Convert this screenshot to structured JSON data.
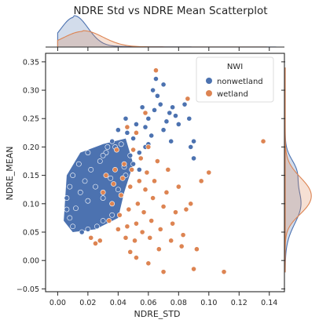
{
  "chart_data": {
    "type": "scatter",
    "title": "NDRE Std vs NDRE Mean Scatterplot",
    "xlabel": "NDRE_STD",
    "ylabel": "NDRE_MEAN",
    "xlim": [
      -0.008,
      0.15
    ],
    "ylim": [
      -0.055,
      0.365
    ],
    "xticks": [
      "0.00",
      "0.02",
      "0.04",
      "0.06",
      "0.08",
      "0.10",
      "0.12",
      "0.14"
    ],
    "yticks": [
      "−0.05",
      "0.00",
      "0.05",
      "0.10",
      "0.15",
      "0.20",
      "0.25",
      "0.30",
      "0.35"
    ],
    "legend": {
      "title": "NWI",
      "placement": "top-right"
    },
    "grid": false,
    "marginals": {
      "top": "kde of NDRE_STD by NWI",
      "right": "kde of NDRE_MEAN by NWI"
    },
    "series": [
      {
        "name": "nonwetland",
        "color": "#4c72b0",
        "points": [
          [
            0.012,
            0.092
          ],
          [
            0.015,
            0.12
          ],
          [
            0.018,
            0.14
          ],
          [
            0.02,
            0.105
          ],
          [
            0.022,
            0.16
          ],
          [
            0.025,
            0.13
          ],
          [
            0.028,
            0.175
          ],
          [
            0.03,
            0.11
          ],
          [
            0.032,
            0.19
          ],
          [
            0.035,
            0.145
          ],
          [
            0.038,
            0.2
          ],
          [
            0.04,
            0.125
          ],
          [
            0.042,
            0.205
          ],
          [
            0.044,
            0.165
          ],
          [
            0.046,
            0.225
          ],
          [
            0.048,
            0.185
          ],
          [
            0.05,
            0.215
          ],
          [
            0.052,
            0.24
          ],
          [
            0.054,
            0.16
          ],
          [
            0.056,
            0.27
          ],
          [
            0.058,
            0.2
          ],
          [
            0.06,
            0.25
          ],
          [
            0.062,
            0.22
          ],
          [
            0.063,
            0.3
          ],
          [
            0.064,
            0.265
          ],
          [
            0.066,
            0.29
          ],
          [
            0.068,
            0.275
          ],
          [
            0.07,
            0.31
          ],
          [
            0.072,
            0.245
          ],
          [
            0.074,
            0.26
          ],
          [
            0.076,
            0.27
          ],
          [
            0.078,
            0.255
          ],
          [
            0.08,
            0.24
          ],
          [
            0.084,
            0.275
          ],
          [
            0.087,
            0.25
          ],
          [
            0.09,
            0.21
          ],
          [
            0.065,
            0.32
          ],
          [
            0.045,
            0.25
          ],
          [
            0.04,
            0.23
          ],
          [
            0.036,
            0.21
          ],
          [
            0.033,
            0.2
          ],
          [
            0.03,
            0.185
          ],
          [
            0.026,
            0.06
          ],
          [
            0.03,
            0.07
          ],
          [
            0.036,
            0.08
          ],
          [
            0.02,
            0.055
          ],
          [
            0.016,
            0.05
          ],
          [
            0.01,
            0.06
          ],
          [
            0.008,
            0.075
          ],
          [
            0.006,
            0.09
          ],
          [
            0.006,
            0.11
          ],
          [
            0.008,
            0.13
          ],
          [
            0.01,
            0.15
          ],
          [
            0.014,
            0.17
          ],
          [
            0.02,
            0.19
          ],
          [
            0.045,
            0.15
          ],
          [
            0.05,
            0.17
          ],
          [
            0.054,
            0.19
          ],
          [
            0.06,
            0.205
          ],
          [
            0.058,
            0.235
          ],
          [
            0.07,
            0.23
          ],
          [
            0.075,
            0.21
          ],
          [
            0.088,
            0.2
          ],
          [
            0.09,
            0.18
          ]
        ]
      },
      {
        "name": "wetland",
        "color": "#dd8452",
        "points": [
          [
            0.136,
            0.21
          ],
          [
            0.11,
            -0.02
          ],
          [
            0.1,
            0.155
          ],
          [
            0.095,
            0.14
          ],
          [
            0.092,
            0.02
          ],
          [
            0.09,
            -0.015
          ],
          [
            0.088,
            0.1
          ],
          [
            0.086,
            0.285
          ],
          [
            0.085,
            0.09
          ],
          [
            0.083,
            0.045
          ],
          [
            0.08,
            0.13
          ],
          [
            0.078,
            0.085
          ],
          [
            0.076,
            0.065
          ],
          [
            0.075,
            0.035
          ],
          [
            0.073,
            0.16
          ],
          [
            0.072,
            0.12
          ],
          [
            0.07,
            0.095
          ],
          [
            0.068,
            0.055
          ],
          [
            0.067,
            0.02
          ],
          [
            0.066,
            0.175
          ],
          [
            0.065,
            0.335
          ],
          [
            0.064,
            0.14
          ],
          [
            0.063,
            0.11
          ],
          [
            0.062,
            0.07
          ],
          [
            0.061,
            0.04
          ],
          [
            0.06,
            0.2
          ],
          [
            0.059,
            0.155
          ],
          [
            0.058,
            0.125
          ],
          [
            0.057,
            0.085
          ],
          [
            0.056,
            0.05
          ],
          [
            0.055,
            0.18
          ],
          [
            0.054,
            0.14
          ],
          [
            0.053,
            0.1
          ],
          [
            0.052,
            0.065
          ],
          [
            0.051,
            0.035
          ],
          [
            0.05,
            0.195
          ],
          [
            0.049,
            0.16
          ],
          [
            0.048,
            0.13
          ],
          [
            0.047,
            0.09
          ],
          [
            0.046,
            0.06
          ],
          [
            0.045,
            0.04
          ],
          [
            0.044,
            0.17
          ],
          [
            0.043,
            0.145
          ],
          [
            0.042,
            0.115
          ],
          [
            0.041,
            0.08
          ],
          [
            0.04,
            0.055
          ],
          [
            0.039,
            0.195
          ],
          [
            0.038,
            0.16
          ],
          [
            0.037,
            0.135
          ],
          [
            0.036,
            0.1
          ],
          [
            0.034,
            0.07
          ],
          [
            0.032,
            0.15
          ],
          [
            0.03,
            0.12
          ],
          [
            0.028,
            0.035
          ],
          [
            0.025,
            0.03
          ],
          [
            0.022,
            0.04
          ],
          [
            0.06,
            -0.005
          ],
          [
            0.048,
            0.015
          ],
          [
            0.052,
            0.005
          ],
          [
            0.07,
            -0.02
          ],
          [
            0.082,
            0.025
          ],
          [
            0.058,
            0.26
          ],
          [
            0.052,
            0.225
          ],
          [
            0.046,
            0.235
          ]
        ]
      }
    ]
  }
}
